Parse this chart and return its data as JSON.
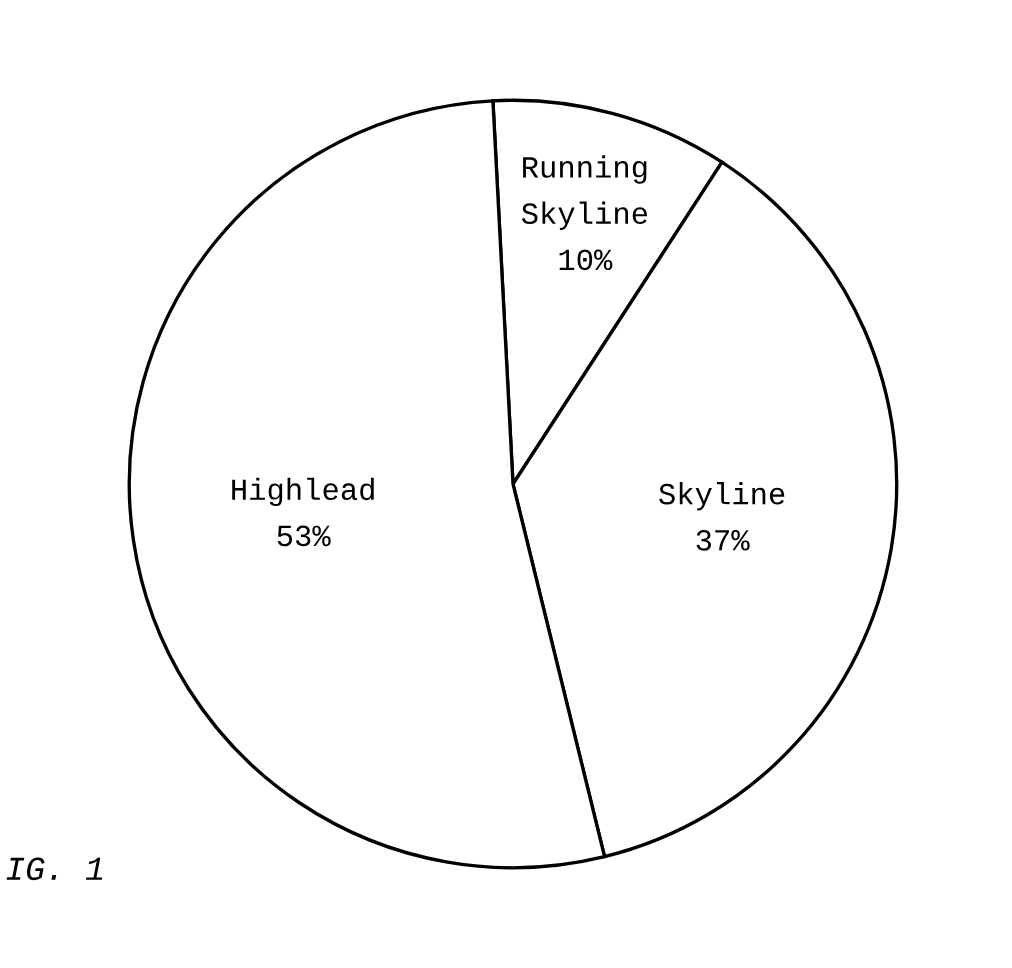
{
  "chart_data": {
    "type": "pie",
    "categories": [
      "Running\nSkyline",
      "Skyline",
      "Highlead"
    ],
    "values": [
      10,
      37,
      53
    ],
    "value_labels": [
      "10%",
      "37%",
      "53%"
    ],
    "colors": [
      "#ffffff",
      "#ffffff",
      "#ffffff"
    ],
    "annotations": [
      "IG. 1"
    ]
  }
}
